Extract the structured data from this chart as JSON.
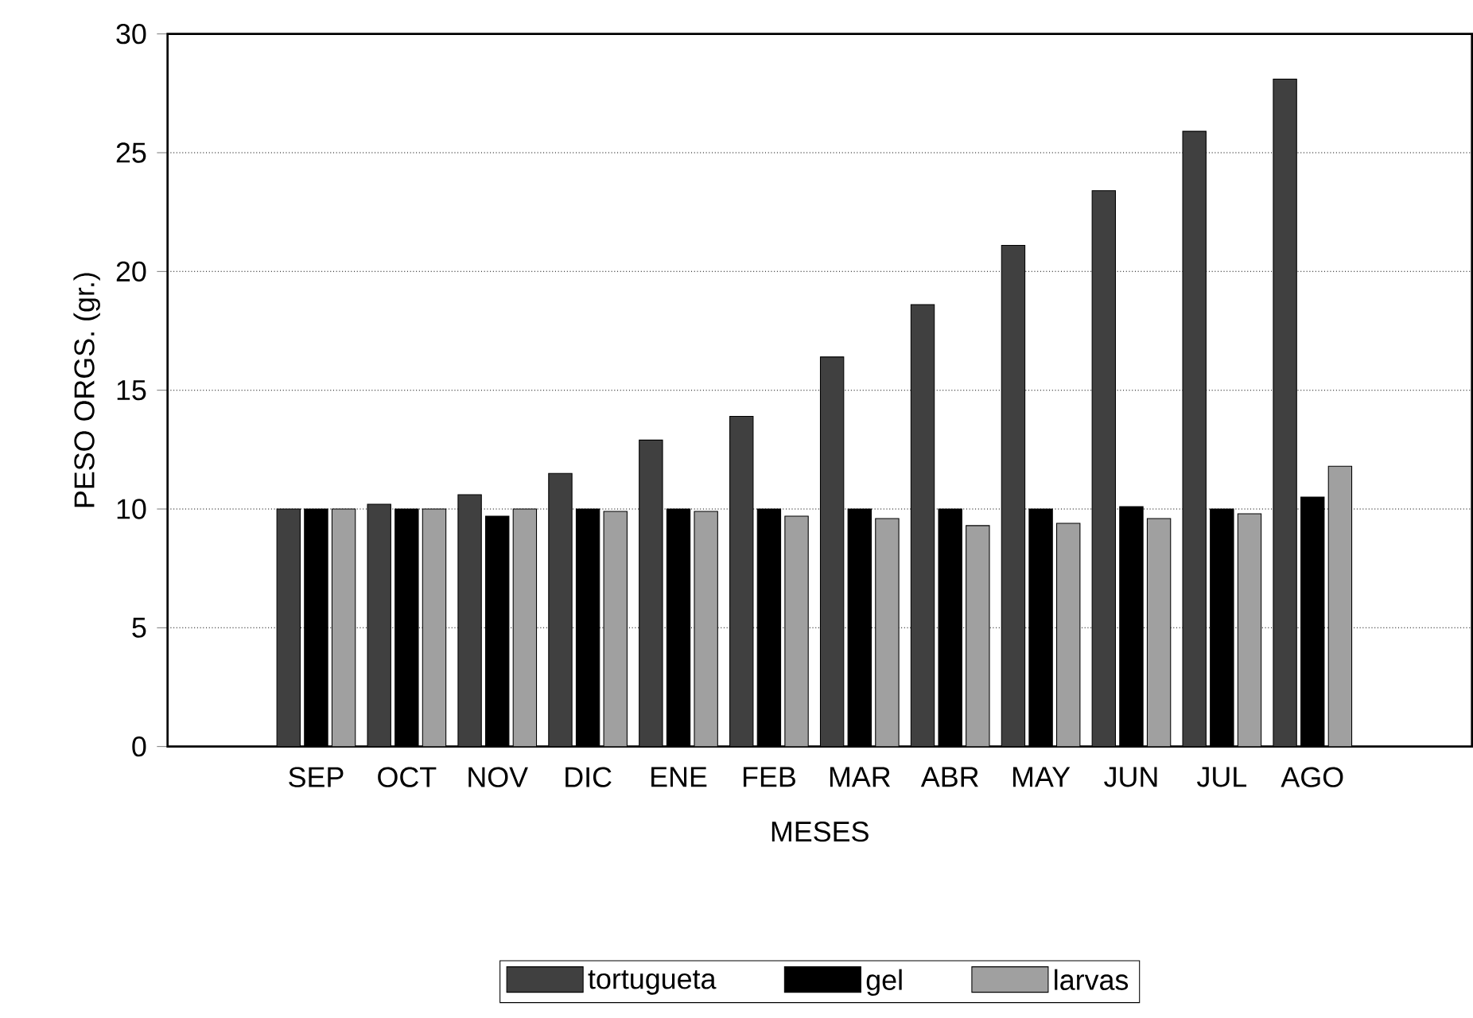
{
  "chart_data": {
    "type": "bar",
    "xlabel": "MESES",
    "ylabel": "PESO ORGS. (gr.)",
    "categories": [
      "SEP",
      "OCT",
      "NOV",
      "DIC",
      "ENE",
      "FEB",
      "MAR",
      "ABR",
      "MAY",
      "JUN",
      "JUL",
      "AGO"
    ],
    "series": [
      {
        "name": "tortugueta",
        "color": "#404040",
        "values": [
          10.0,
          10.2,
          10.6,
          11.5,
          12.9,
          13.9,
          16.4,
          18.6,
          21.1,
          23.4,
          25.9,
          28.1
        ]
      },
      {
        "name": "gel",
        "color": "#000000",
        "values": [
          10.0,
          10.0,
          9.7,
          10.0,
          10.0,
          10.0,
          10.0,
          10.0,
          10.0,
          10.1,
          10.0,
          10.5
        ]
      },
      {
        "name": "larvas",
        "color": "#a0a0a0",
        "values": [
          10.0,
          10.0,
          10.0,
          9.9,
          9.9,
          9.7,
          9.6,
          9.3,
          9.4,
          9.6,
          9.8,
          11.8
        ]
      }
    ],
    "ylim": [
      0,
      30
    ],
    "yticks": [
      0,
      5,
      10,
      15,
      20,
      25,
      30
    ],
    "grid": "y",
    "legend": "bottom"
  }
}
